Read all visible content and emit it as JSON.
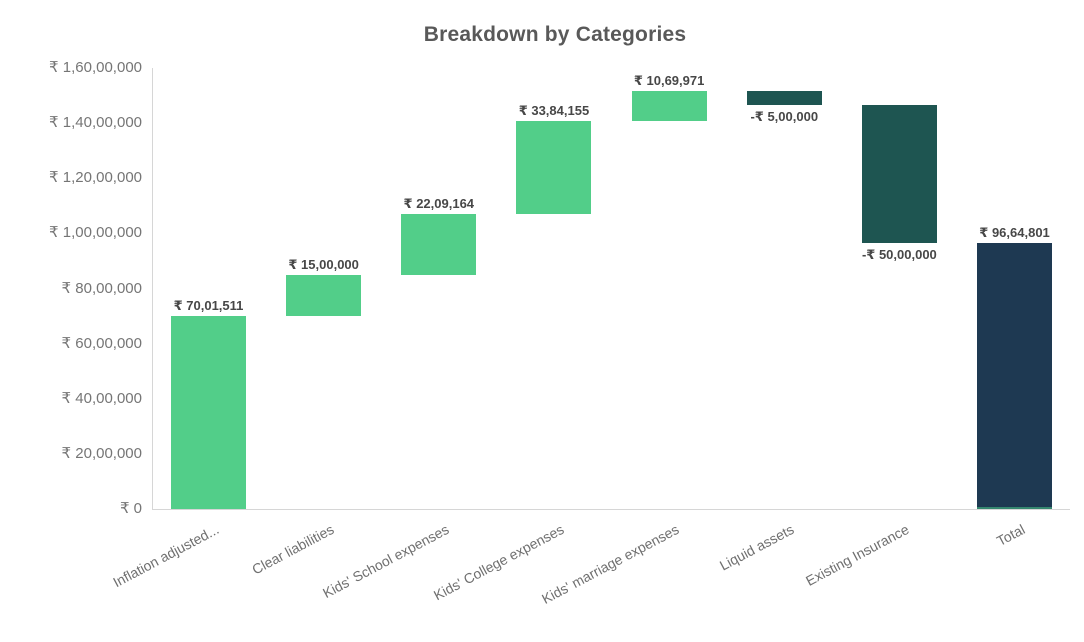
{
  "title": "Breakdown by Categories",
  "chart_data": {
    "type": "bar",
    "subtype": "waterfall",
    "title": "Breakdown by Categories",
    "xlabel": "",
    "ylabel": "",
    "grid": false,
    "legend": "none",
    "currency": "INR (Indian digit grouping)",
    "categories": [
      "Inflation adjusted...",
      "Clear liabilities",
      "Kids' School expenses",
      "Kids' College expenses",
      "Kids' marriage expenses",
      "Liquid assets",
      "Existing Insurance",
      "Total"
    ],
    "points": [
      {
        "category": "Inflation adjusted...",
        "value": 7001511,
        "kind": "increase",
        "label": "₹ 70,01,511",
        "cumulative_start": 0,
        "cumulative_end": 7001511
      },
      {
        "category": "Clear liabilities",
        "value": 1500000,
        "kind": "increase",
        "label": "₹ 15,00,000",
        "cumulative_start": 7001511,
        "cumulative_end": 8501511
      },
      {
        "category": "Kids' School expenses",
        "value": 2209164,
        "kind": "increase",
        "label": "₹ 22,09,164",
        "cumulative_start": 8501511,
        "cumulative_end": 10710675
      },
      {
        "category": "Kids' College expenses",
        "value": 3384155,
        "kind": "increase",
        "label": "₹ 33,84,155",
        "cumulative_start": 10710675,
        "cumulative_end": 14094830
      },
      {
        "category": "Kids' marriage expenses",
        "value": 1069971,
        "kind": "increase",
        "label": "₹ 10,69,971",
        "cumulative_start": 14094830,
        "cumulative_end": 15164801
      },
      {
        "category": "Liquid assets",
        "value": -500000,
        "kind": "decrease",
        "label": "-₹ 5,00,000",
        "cumulative_start": 15164801,
        "cumulative_end": 14664801
      },
      {
        "category": "Existing Insurance",
        "value": -5000000,
        "kind": "decrease",
        "label": "-₹ 50,00,000",
        "cumulative_start": 14664801,
        "cumulative_end": 9664801
      },
      {
        "category": "Total",
        "value": 9664801,
        "kind": "total",
        "label": "₹ 96,64,801",
        "cumulative_start": 0,
        "cumulative_end": 9664801
      }
    ],
    "y_axis": {
      "min": 0,
      "max": 16000000,
      "tick_values": [
        0,
        2000000,
        4000000,
        6000000,
        8000000,
        10000000,
        12000000,
        14000000,
        16000000
      ],
      "tick_labels": [
        "₹ 0",
        "₹ 20,00,000",
        "₹ 40,00,000",
        "₹ 60,00,000",
        "₹ 80,00,000",
        "₹ 1,00,00,000",
        "₹ 1,20,00,000",
        "₹ 1,40,00,000",
        "₹ 1,60,00,000"
      ]
    },
    "colors": {
      "increase": "#52CE89",
      "decrease": "#1E5551",
      "total": "#1E3952",
      "total_base_strip": "#35876F",
      "axis_line": "#D6D6D6",
      "title_text": "#595959",
      "tick_text": "#757575",
      "category_text": "#6F6F6F",
      "data_label_text": "#474747"
    }
  }
}
